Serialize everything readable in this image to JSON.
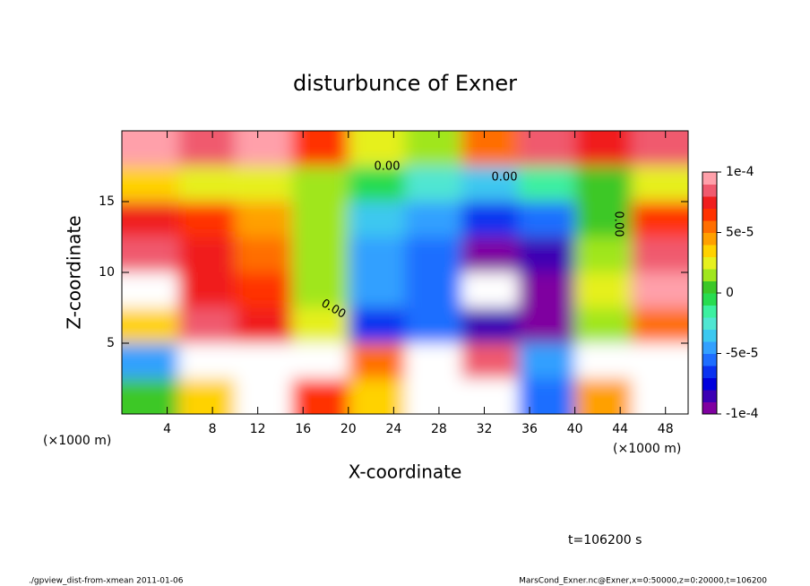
{
  "chart_data": {
    "type": "heatmap",
    "title": "disturbunce of Exner",
    "xlabel": "X-coordinate",
    "ylabel": "Z-coordinate",
    "x_unit_label": "(×1000 m)",
    "annotation": "t=106200 s",
    "footer_left": "./gpview_dist-from-xmean  2011-01-06",
    "footer_right": "MarsCond_Exner.nc@Exner,x=0:50000,z=0:20000,t=106200",
    "contour_labels": [
      "0.00",
      "0.00",
      "0.00",
      "0.00"
    ],
    "xlim": [
      0,
      50
    ],
    "ylim": [
      0,
      20
    ],
    "xticks": [
      4,
      8,
      12,
      16,
      20,
      24,
      28,
      32,
      36,
      40,
      44,
      48
    ],
    "yticks": [
      5,
      10,
      15
    ],
    "x": [
      2.5,
      7.5,
      12.5,
      17.5,
      22.5,
      27.5,
      32.5,
      37.5,
      42.5,
      47.5
    ],
    "y": [
      1.25,
      3.75,
      6.25,
      8.75,
      11.25,
      13.75,
      16.25,
      18.75
    ],
    "z": [
      [
        0,
        3e-05,
        -0.00015,
        6e-05,
        3e-05,
        0.00012,
        0.00012,
        -6e-05,
        4e-05,
        0.00012
      ],
      [
        -5e-05,
        0.00012,
        0.00015,
        0.00012,
        5e-05,
        0.00015,
        8e-05,
        -5e-05,
        0.00015,
        0.00012
      ],
      [
        3e-05,
        8e-05,
        7e-05,
        2e-05,
        -7e-05,
        -6e-05,
        -8e-05,
        -9e-05,
        1e-05,
        5e-05
      ],
      [
        0.00012,
        7e-05,
        6e-05,
        1e-05,
        -5e-05,
        -6e-05,
        -0.00012,
        -9e-05,
        2e-05,
        9e-05
      ],
      [
        8e-05,
        7e-05,
        5e-05,
        1e-05,
        -5e-05,
        -6e-05,
        -9e-05,
        -8e-05,
        1e-05,
        8e-05
      ],
      [
        7e-05,
        6e-05,
        4e-05,
        1e-05,
        -4e-05,
        -5e-05,
        -7e-05,
        -6e-05,
        0,
        6e-05
      ],
      [
        3e-05,
        2e-05,
        2e-05,
        1e-05,
        -1e-05,
        -3e-05,
        -4e-05,
        -2e-05,
        0,
        2e-05
      ],
      [
        9e-05,
        8e-05,
        9e-05,
        6e-05,
        2e-05,
        1e-05,
        5e-05,
        8e-05,
        7e-05,
        8e-05
      ]
    ],
    "clim": [
      -0.0001,
      0.0001
    ],
    "cticks": [
      {
        "value": 0.0001,
        "label": "1e-4"
      },
      {
        "value": 5e-05,
        "label": "5e-5"
      },
      0,
      {
        "value": -5e-05,
        "label": "-5e-5"
      },
      {
        "value": -0.0001,
        "label": "-1e-4"
      }
    ],
    "colormap": [
      "#7f00a0",
      "#3c00b4",
      "#0000dc",
      "#0a32f0",
      "#1e6eff",
      "#32a0ff",
      "#3cc8f0",
      "#50e6d2",
      "#3cf0a0",
      "#28dc50",
      "#3cc828",
      "#a0e61e",
      "#e6f01e",
      "#ffd200",
      "#ffa000",
      "#ff6e00",
      "#ff3200",
      "#f01e1e",
      "#f05a6e",
      "#ffa0aa"
    ],
    "out_of_range_color": "#ffffff"
  }
}
